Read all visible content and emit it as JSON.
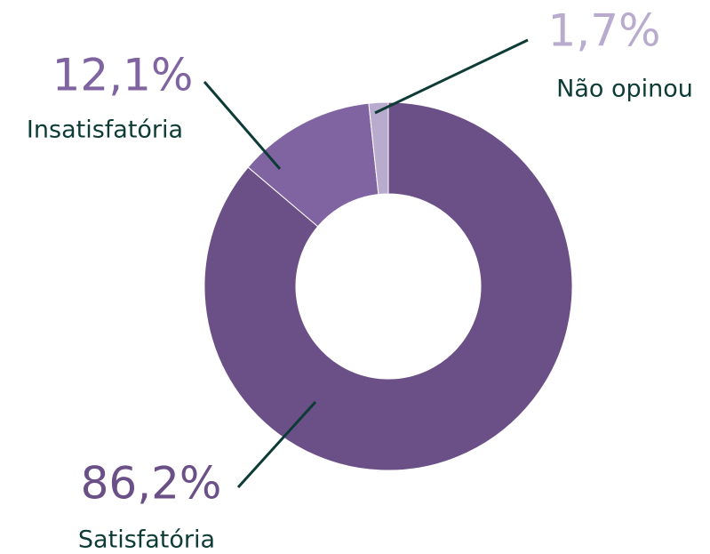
{
  "chart_data": {
    "type": "donut",
    "categories": [
      "Satisfatória",
      "Insatisfatória",
      "Não opinou"
    ],
    "values": [
      86.2,
      12.1,
      1.7
    ],
    "value_labels": [
      "86,2%",
      "12,1%",
      "1,7%"
    ],
    "colors": [
      "#6a5086",
      "#8064a2",
      "#b9abcd"
    ]
  }
}
